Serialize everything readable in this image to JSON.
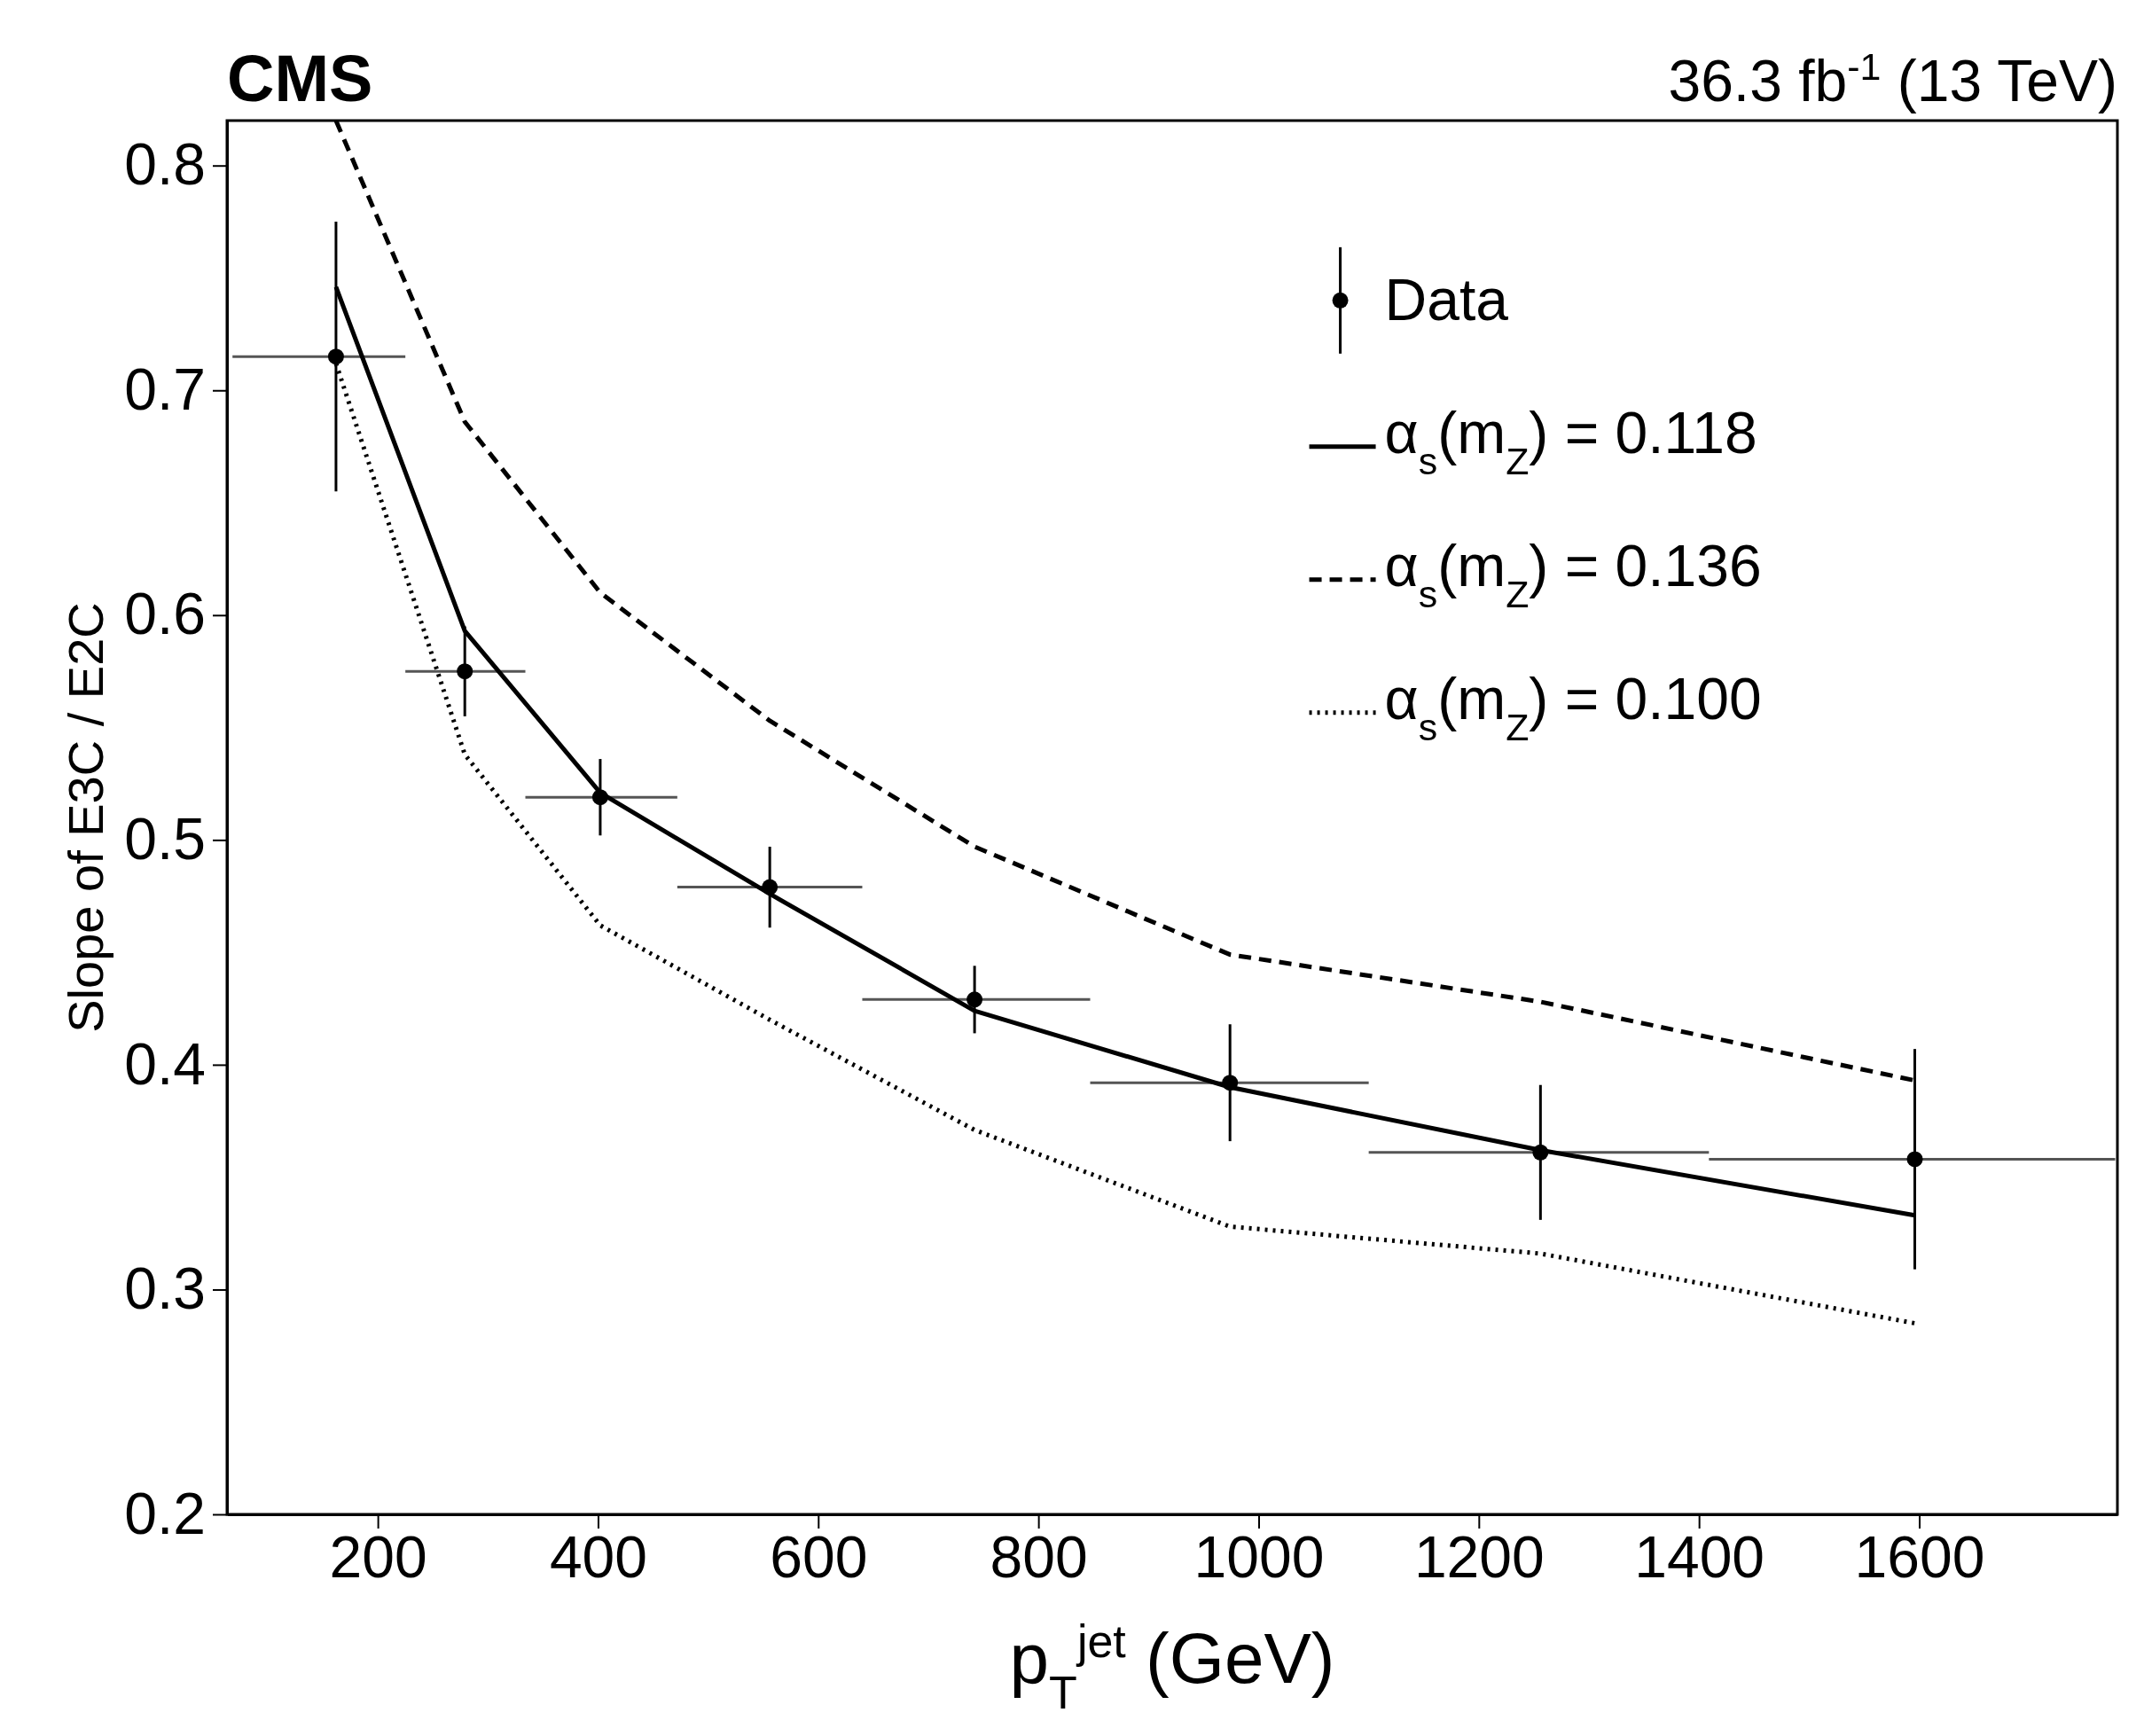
{
  "chart_data": {
    "type": "line",
    "title": "CMS",
    "subtitle": "36.3 fb$^{-1}$ (13 TeV)",
    "xlabel": "p$_{T}$$^{jet}$ (GeV)",
    "ylabel": "Slope of E3C / E2C",
    "xlim": [
      63,
      1780
    ],
    "xticks": [
      200,
      400,
      600,
      800,
      1000,
      1200,
      1400,
      1600
    ],
    "ylim": [
      0.2,
      0.82
    ],
    "yticks": [
      0.2,
      0.3,
      0.4,
      0.5,
      0.6,
      0.7,
      0.8
    ],
    "grid": false,
    "legend": "top right",
    "x": [
      162,
      279,
      402,
      556,
      742,
      974,
      1256,
      1596
    ],
    "series": [
      {
        "name": "Data",
        "type": "scatter",
        "marker": "circle",
        "color": "#000000",
        "values": [
          0.715,
          0.575,
          0.519,
          0.479,
          0.429,
          0.392,
          0.361,
          0.358
        ],
        "errors": [
          0.06,
          0.02,
          0.017,
          0.018,
          0.015,
          0.026,
          0.03,
          0.049
        ],
        "xerrors": [
          [
            68,
            225
          ],
          [
            225,
            334
          ],
          [
            334,
            472
          ],
          [
            472,
            640
          ],
          [
            640,
            847
          ],
          [
            847,
            1100
          ],
          [
            1100,
            1409
          ],
          [
            1409,
            1778
          ]
        ]
      },
      {
        "name": "α$_{s}$(m$_{Z}$) = 0.118",
        "line_style": "solid",
        "color": "#000000",
        "values": [
          0.746,
          0.593,
          0.521,
          0.476,
          0.424,
          0.39,
          0.362,
          0.333
        ]
      },
      {
        "name": "α$_{s}$(m$_{Z}$) = 0.136",
        "line_style": "dashed",
        "color": "#000000",
        "values": [
          0.82,
          0.686,
          0.61,
          0.553,
          0.497,
          0.449,
          0.428,
          0.393
        ]
      },
      {
        "name": "α$_{s}$(m$_{Z}$) = 0.100",
        "line_style": "dotted",
        "color": "#000000",
        "values": [
          0.712,
          0.538,
          0.462,
          0.42,
          0.371,
          0.328,
          0.316,
          0.285
        ]
      }
    ]
  }
}
